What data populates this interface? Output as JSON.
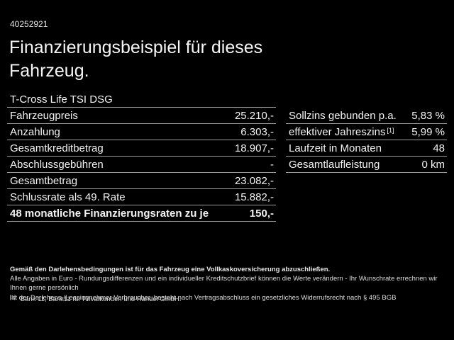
{
  "header": {
    "offer_number": "40252921",
    "title_line1": "Finanzierungsbeispiel für dieses",
    "title_line2": "Fahrzeug.",
    "model_name": "T-Cross Life TSI DSG"
  },
  "finance_table": {
    "rows": [
      {
        "label": "Fahrzeugpreis",
        "value": "25.210,-"
      },
      {
        "label": "Anzahlung",
        "value": "6.303,-"
      },
      {
        "label": "Gesamtkreditbetrag",
        "value": "18.907,-"
      },
      {
        "label": "Abschlussgebühren",
        "value": "-"
      },
      {
        "label": "Gesamtbetrag",
        "value": "23.082,-"
      },
      {
        "label": "Schlussrate als 49. Rate",
        "value": "15.882,-"
      },
      {
        "label": "48 monatliche Finanzierungsraten zu je",
        "value": "150,-",
        "bold": true
      }
    ]
  },
  "conditions_table": {
    "rows": [
      {
        "label": "Sollzins gebunden p.a.",
        "value": "5,83 %"
      },
      {
        "label": "effektiver Jahreszins",
        "superscript": "[1]",
        "value": "5,99 %"
      },
      {
        "label": "Laufzeit in Monaten",
        "value": "48"
      },
      {
        "label": "Gesamtlaufleistung",
        "value": "0 km"
      }
    ]
  },
  "disclaimer": {
    "line1": "Gemäß den Darlehensbedingungen ist für das Fahrzeug eine Vollkaskoversicherung abzuschließen.",
    "line2": "Alle Angaben in Euro - Rundungsdifferenzen und ein individueller Kreditschutzbrief können die Werte verändern - Ihr Wunschrate errechnen wir Ihnen gerne persönlich",
    "line3": "Ist der Darlehens-/Leasingnehmer Verbraucher, besteht nach Vertragsabschluss ein gesetzliches Widerrufsrecht nach § 495 BGB",
    "footnote_marker": "[1]",
    "footnote_text": "Bank 11, Bank11 für Privatkunden und Handel GmbH."
  },
  "colors": {
    "background": "#000000",
    "text": "#f2f2f2",
    "divider": "#9e9e9e"
  }
}
